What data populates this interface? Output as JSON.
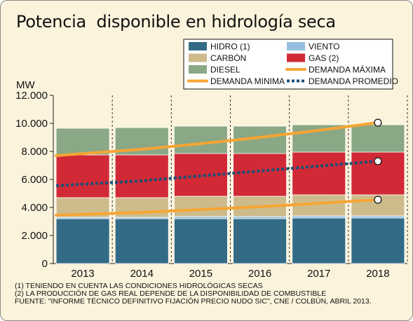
{
  "title": "Potencia  disponible en hidrología seca",
  "footnotes": [
    "(1) TENIENDO EN CUENTA LAS CONDICIONES HIDROLÓGICAS SECAS",
    "(2) LA PRODUCCIÓN DE GAS REAL DEPENDE DE LA DISPONIBILIDAD DE COMBUSTIBLE",
    "FUENTE: \"INFORME TÉCNICO DEFINITIVO FIJACIÓN PRECIO NUDO SIC\", CNE / COLBÚN, ABRIL 2013."
  ],
  "chart_data": {
    "type": "bar",
    "stacked": true,
    "title": "Potencia  disponible en hidrología seca",
    "ylabel": "MW",
    "ylim": [
      0,
      12000
    ],
    "yticks": [
      0,
      2000,
      4000,
      6000,
      8000,
      10000,
      12000
    ],
    "ytick_labels": [
      "0",
      "2.000",
      "4.000",
      "6.000",
      "8.000",
      "10.000",
      "12.000"
    ],
    "categories": [
      "2013",
      "2014",
      "2015",
      "2016",
      "2017",
      "2018"
    ],
    "legend_position": "top-right",
    "series": [
      {
        "name": "HIDRO (1)",
        "color": "#336b86",
        "values": [
          3200,
          3200,
          3200,
          3200,
          3250,
          3250
        ]
      },
      {
        "name": "VIENTO",
        "color": "#95bfe0",
        "values": [
          100,
          100,
          150,
          150,
          150,
          150
        ]
      },
      {
        "name": "CARBÓN",
        "color": "#cdbb8c",
        "values": [
          1400,
          1400,
          1450,
          1450,
          1500,
          1500
        ]
      },
      {
        "name": "GAS (2)",
        "color": "#d12a36",
        "values": [
          3050,
          3050,
          3050,
          3050,
          3050,
          3050
        ]
      },
      {
        "name": "DIESEL",
        "color": "#8aa885",
        "values": [
          1900,
          1950,
          1950,
          1950,
          1950,
          1950
        ]
      }
    ],
    "lines": [
      {
        "name": "DEMANDA MÁXIMA",
        "color": "#f6a534",
        "style": "solid",
        "values": [
          7700,
          8150,
          8550,
          9000,
          9500,
          10050
        ]
      },
      {
        "name": "DEMANDA PROMEDIO",
        "color": "#1b4f77",
        "style": "dotted",
        "values": [
          5550,
          5900,
          6250,
          6600,
          6950,
          7300
        ]
      },
      {
        "name": "DEMANDA MINIMA",
        "color": "#f6a534",
        "style": "solid",
        "values": [
          3450,
          3650,
          3850,
          4050,
          4300,
          4550
        ]
      }
    ],
    "legend": [
      {
        "label": "HIDRO (1)",
        "kind": "box",
        "color": "#336b86"
      },
      {
        "label": "VIENTO",
        "kind": "box",
        "color": "#95bfe0"
      },
      {
        "label": "CARBÓN",
        "kind": "box",
        "color": "#cdbb8c"
      },
      {
        "label": "GAS (2)",
        "kind": "box",
        "color": "#d12a36"
      },
      {
        "label": "DIESEL",
        "kind": "box",
        "color": "#8aa885"
      },
      {
        "label": "DEMANDA MÁXIMA",
        "kind": "line",
        "color": "#f6a534"
      },
      {
        "label": "DEMANDA MINIMA",
        "kind": "line",
        "color": "#f6a534"
      },
      {
        "label": "DEMANDA PROMEDIO",
        "kind": "dotted",
        "color": "#1b4f77"
      }
    ]
  }
}
